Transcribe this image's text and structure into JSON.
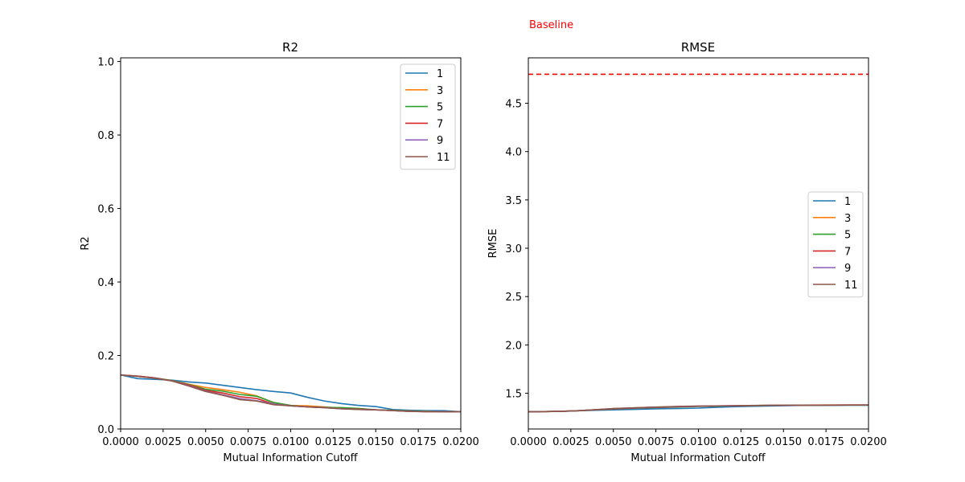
{
  "chart_data": [
    {
      "type": "line",
      "title": "R2",
      "xlabel": "Mutual Information Cutoff",
      "ylabel": "R2",
      "xlim": [
        0,
        0.02
      ],
      "ylim": [
        0,
        1.01
      ],
      "xticks": [
        "0.0000",
        "0.0025",
        "0.0050",
        "0.0075",
        "0.0100",
        "0.0125",
        "0.0150",
        "0.0175",
        "0.0200"
      ],
      "yticks": [
        "0.0",
        "0.2",
        "0.4",
        "0.6",
        "0.8",
        "1.0"
      ],
      "x": [
        0,
        0.001,
        0.002,
        0.003,
        0.004,
        0.005,
        0.006,
        0.007,
        0.008,
        0.009,
        0.01,
        0.011,
        0.012,
        0.013,
        0.014,
        0.015,
        0.016,
        0.017,
        0.018,
        0.019,
        0.02
      ],
      "legend_position": "upper right",
      "series": [
        {
          "name": "1",
          "color": "#1f77b4",
          "values": [
            0.147,
            0.137,
            0.135,
            0.133,
            0.128,
            0.125,
            0.119,
            0.113,
            0.107,
            0.102,
            0.098,
            0.086,
            0.076,
            0.069,
            0.064,
            0.061,
            0.053,
            0.051,
            0.05,
            0.05,
            0.047
          ]
        },
        {
          "name": "3",
          "color": "#ff7f0e",
          "values": [
            0.147,
            0.144,
            0.139,
            0.132,
            0.122,
            0.113,
            0.107,
            0.1,
            0.09,
            0.072,
            0.064,
            0.063,
            0.06,
            0.056,
            0.053,
            0.052,
            0.05,
            0.049,
            0.048,
            0.047,
            0.047
          ]
        },
        {
          "name": "5",
          "color": "#2ca02c",
          "values": [
            0.147,
            0.144,
            0.139,
            0.132,
            0.121,
            0.108,
            0.103,
            0.094,
            0.089,
            0.072,
            0.064,
            0.06,
            0.059,
            0.058,
            0.056,
            0.052,
            0.051,
            0.049,
            0.048,
            0.047,
            0.047
          ]
        },
        {
          "name": "7",
          "color": "#d62728",
          "values": [
            0.147,
            0.144,
            0.139,
            0.131,
            0.12,
            0.105,
            0.098,
            0.088,
            0.083,
            0.068,
            0.063,
            0.06,
            0.058,
            0.055,
            0.054,
            0.052,
            0.05,
            0.048,
            0.047,
            0.047,
            0.047
          ]
        },
        {
          "name": "9",
          "color": "#9467bd",
          "values": [
            0.147,
            0.143,
            0.138,
            0.131,
            0.118,
            0.103,
            0.093,
            0.083,
            0.077,
            0.068,
            0.063,
            0.06,
            0.058,
            0.055,
            0.053,
            0.052,
            0.05,
            0.048,
            0.047,
            0.047,
            0.047
          ]
        },
        {
          "name": "11",
          "color": "#8c564b",
          "values": [
            0.147,
            0.143,
            0.138,
            0.131,
            0.117,
            0.102,
            0.092,
            0.08,
            0.076,
            0.066,
            0.063,
            0.06,
            0.058,
            0.055,
            0.053,
            0.052,
            0.05,
            0.048,
            0.047,
            0.047,
            0.047
          ]
        }
      ]
    },
    {
      "type": "line",
      "title": "RMSE",
      "xlabel": "Mutual Information Cutoff",
      "ylabel": "RMSE",
      "xlim": [
        0,
        0.02
      ],
      "ylim": [
        1.13,
        4.97
      ],
      "xticks": [
        "0.0000",
        "0.0025",
        "0.0050",
        "0.0075",
        "0.0100",
        "0.0125",
        "0.0150",
        "0.0175",
        "0.0200"
      ],
      "yticks": [
        "1.5",
        "2.0",
        "2.5",
        "3.0",
        "3.5",
        "4.0",
        "4.5"
      ],
      "x": [
        0,
        0.001,
        0.002,
        0.003,
        0.004,
        0.005,
        0.006,
        0.007,
        0.008,
        0.009,
        0.01,
        0.011,
        0.012,
        0.013,
        0.014,
        0.015,
        0.016,
        0.017,
        0.018,
        0.019,
        0.02
      ],
      "legend_position": "center right",
      "baseline": {
        "label": "Baseline",
        "value": 4.8,
        "color": "#ff0000"
      },
      "series": [
        {
          "name": "1",
          "color": "#1f77b4",
          "values": [
            1.308,
            1.31,
            1.312,
            1.318,
            1.324,
            1.328,
            1.332,
            1.336,
            1.34,
            1.342,
            1.346,
            1.354,
            1.36,
            1.364,
            1.367,
            1.37,
            1.373,
            1.374,
            1.375,
            1.376,
            1.376
          ]
        },
        {
          "name": "3",
          "color": "#ff7f0e",
          "values": [
            1.308,
            1.31,
            1.313,
            1.32,
            1.33,
            1.34,
            1.347,
            1.353,
            1.358,
            1.362,
            1.365,
            1.368,
            1.37,
            1.372,
            1.374,
            1.376,
            1.377,
            1.378,
            1.378,
            1.378,
            1.378
          ]
        },
        {
          "name": "5",
          "color": "#2ca02c",
          "values": [
            1.308,
            1.31,
            1.313,
            1.32,
            1.328,
            1.336,
            1.343,
            1.349,
            1.353,
            1.358,
            1.363,
            1.366,
            1.369,
            1.371,
            1.372,
            1.374,
            1.375,
            1.376,
            1.377,
            1.377,
            1.377
          ]
        },
        {
          "name": "7",
          "color": "#d62728",
          "values": [
            1.308,
            1.31,
            1.313,
            1.32,
            1.329,
            1.338,
            1.345,
            1.351,
            1.356,
            1.361,
            1.365,
            1.368,
            1.37,
            1.372,
            1.374,
            1.375,
            1.376,
            1.377,
            1.377,
            1.378,
            1.378
          ]
        },
        {
          "name": "9",
          "color": "#9467bd",
          "values": [
            1.308,
            1.31,
            1.313,
            1.32,
            1.33,
            1.34,
            1.347,
            1.352,
            1.357,
            1.362,
            1.366,
            1.369,
            1.371,
            1.373,
            1.374,
            1.375,
            1.376,
            1.377,
            1.377,
            1.378,
            1.378
          ]
        },
        {
          "name": "11",
          "color": "#8c564b",
          "values": [
            1.308,
            1.31,
            1.313,
            1.32,
            1.33,
            1.341,
            1.348,
            1.354,
            1.359,
            1.364,
            1.367,
            1.369,
            1.371,
            1.373,
            1.375,
            1.376,
            1.377,
            1.377,
            1.378,
            1.378,
            1.378
          ]
        }
      ]
    }
  ]
}
